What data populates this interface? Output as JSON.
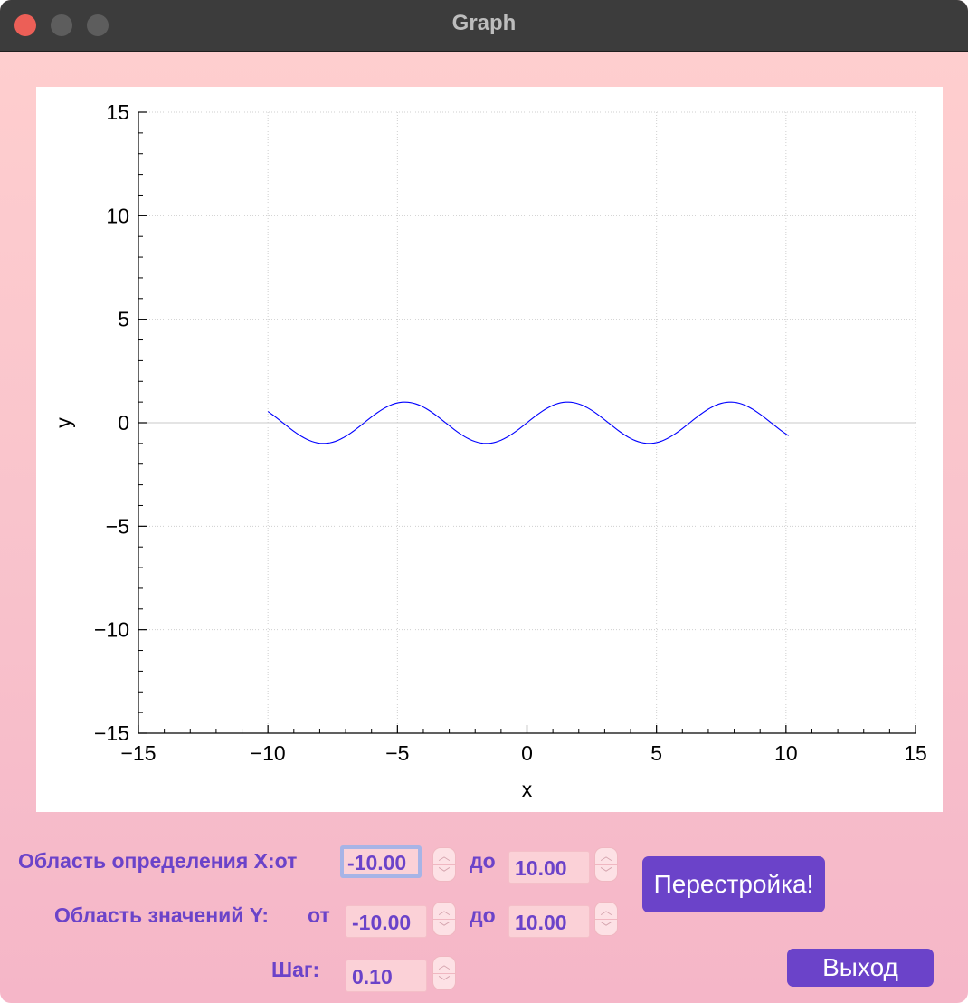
{
  "window": {
    "title": "Graph"
  },
  "colors": {
    "accent": "#6b43c9",
    "curve": "#0000ff",
    "background": "#f7bfca"
  },
  "chart_data": {
    "type": "line",
    "title": "",
    "xlabel": "x",
    "ylabel": "y",
    "xlim": [
      -15,
      15
    ],
    "ylim": [
      -15,
      15
    ],
    "xticks": [
      -15,
      -10,
      -5,
      0,
      5,
      10,
      15
    ],
    "yticks": [
      -15,
      -10,
      -5,
      0,
      5,
      10,
      15
    ],
    "grid": true,
    "series": [
      {
        "function": "sin(x)",
        "x_range": [
          -10,
          10.1
        ],
        "step": 0.1
      }
    ]
  },
  "controls": {
    "x_domain_label": "Область определения X:от",
    "x_from": "-10.00",
    "x_to_label": "до",
    "x_to": "10.00",
    "y_range_label": "Область значений Y:",
    "y_from_label": "от",
    "y_from": "-10.00",
    "y_to_label": "до",
    "y_to": "10.00",
    "step_label": "Шаг:",
    "step": "0.10",
    "rebuild_button": "Перестройка!",
    "exit_button": "Выход"
  }
}
